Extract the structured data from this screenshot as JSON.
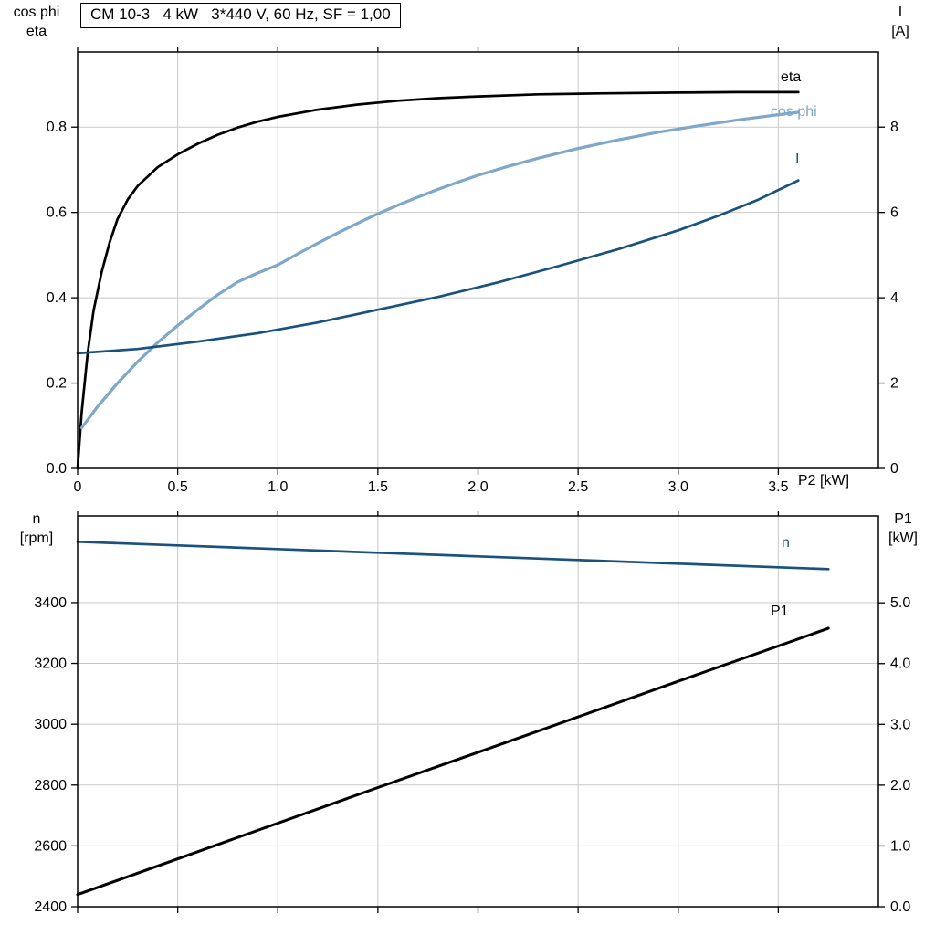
{
  "colors": {
    "grid": "#c9c9c9",
    "axis": "#000000",
    "background": "#ffffff",
    "black_series": "#000000",
    "light_blue_series": "#7ea7c9",
    "dark_blue_series": "#1a527e"
  },
  "chart_data": [
    {
      "type": "line",
      "title": "CM 10-3   4 kW   3*440 V, 60 Hz, SF = 1,00",
      "x_axis": {
        "label": "P2 [kW]",
        "range": [
          0,
          4.0
        ],
        "tick_values": [
          0,
          0.5,
          1,
          1.5,
          2,
          2.5,
          3,
          3.5
        ],
        "tick_labels": [
          "0",
          "0.5",
          "1.0",
          "1.5",
          "2.0",
          "2.5",
          "3.0",
          "3.5"
        ]
      },
      "left_axis": {
        "title_lines": [
          "cos phi",
          "eta"
        ],
        "range": [
          0,
          0.976
        ],
        "tick_values": [
          0,
          0.2,
          0.4,
          0.6,
          0.8
        ],
        "tick_labels": [
          "0.0",
          "0.2",
          "0.4",
          "0.6",
          "0.8"
        ]
      },
      "right_axis": {
        "title_lines": [
          "I",
          "[A]"
        ],
        "range": [
          0,
          9.76
        ],
        "tick_values": [
          0,
          2,
          4,
          6,
          8
        ],
        "tick_labels": [
          "0",
          "2",
          "4",
          "6",
          "8"
        ]
      },
      "series": [
        {
          "name": "eta",
          "axis": "left",
          "color": "#000000",
          "width": 2.7,
          "points": [
            [
              0,
              0
            ],
            [
              0.02,
              0.13
            ],
            [
              0.05,
              0.27
            ],
            [
              0.08,
              0.37
            ],
            [
              0.12,
              0.46
            ],
            [
              0.16,
              0.53
            ],
            [
              0.2,
              0.585
            ],
            [
              0.25,
              0.63
            ],
            [
              0.3,
              0.662
            ],
            [
              0.4,
              0.706
            ],
            [
              0.5,
              0.736
            ],
            [
              0.6,
              0.761
            ],
            [
              0.7,
              0.782
            ],
            [
              0.8,
              0.799
            ],
            [
              0.9,
              0.813
            ],
            [
              1,
              0.824
            ],
            [
              1.2,
              0.841
            ],
            [
              1.4,
              0.853
            ],
            [
              1.6,
              0.862
            ],
            [
              1.8,
              0.868
            ],
            [
              2,
              0.872
            ],
            [
              2.3,
              0.877
            ],
            [
              2.6,
              0.879
            ],
            [
              3,
              0.881
            ],
            [
              3.3,
              0.882
            ],
            [
              3.6,
              0.882
            ]
          ]
        },
        {
          "name": "cos phi",
          "axis": "left",
          "color": "#7ea7c9",
          "width": 3.2,
          "points": [
            [
              0.02,
              0.095
            ],
            [
              0.1,
              0.145
            ],
            [
              0.2,
              0.2
            ],
            [
              0.3,
              0.25
            ],
            [
              0.4,
              0.295
            ],
            [
              0.5,
              0.335
            ],
            [
              0.6,
              0.372
            ],
            [
              0.7,
              0.407
            ],
            [
              0.8,
              0.437
            ],
            [
              0.9,
              0.458
            ],
            [
              1,
              0.477
            ],
            [
              1.1,
              0.503
            ],
            [
              1.2,
              0.528
            ],
            [
              1.3,
              0.552
            ],
            [
              1.4,
              0.575
            ],
            [
              1.5,
              0.597
            ],
            [
              1.6,
              0.617
            ],
            [
              1.7,
              0.636
            ],
            [
              1.8,
              0.654
            ],
            [
              1.9,
              0.671
            ],
            [
              2,
              0.687
            ],
            [
              2.15,
              0.708
            ],
            [
              2.3,
              0.727
            ],
            [
              2.5,
              0.75
            ],
            [
              2.7,
              0.77
            ],
            [
              2.9,
              0.788
            ],
            [
              3.1,
              0.803
            ],
            [
              3.3,
              0.817
            ],
            [
              3.45,
              0.826
            ],
            [
              3.6,
              0.835
            ]
          ]
        },
        {
          "name": "I",
          "axis": "right",
          "color": "#1a527e",
          "width": 2.7,
          "points": [
            [
              0,
              2.7
            ],
            [
              0.3,
              2.8
            ],
            [
              0.6,
              2.97
            ],
            [
              0.9,
              3.17
            ],
            [
              1.2,
              3.42
            ],
            [
              1.5,
              3.72
            ],
            [
              1.8,
              4.02
            ],
            [
              2.1,
              4.36
            ],
            [
              2.4,
              4.74
            ],
            [
              2.7,
              5.14
            ],
            [
              3,
              5.58
            ],
            [
              3.2,
              5.92
            ],
            [
              3.4,
              6.3
            ],
            [
              3.6,
              6.75
            ]
          ]
        }
      ]
    },
    {
      "type": "line",
      "title": "",
      "x_axis": {
        "label": "",
        "range": [
          0,
          4.0
        ],
        "tick_values": [
          0,
          0.5,
          1,
          1.5,
          2,
          2.5,
          3,
          3.5
        ],
        "tick_labels": []
      },
      "left_axis": {
        "title_lines": [
          "n",
          "[rpm]"
        ],
        "range": [
          2400,
          3685
        ],
        "tick_values": [
          2400,
          2600,
          2800,
          3000,
          3200,
          3400
        ],
        "tick_labels": [
          "2400",
          "2600",
          "2800",
          "3000",
          "3200",
          "3400"
        ]
      },
      "right_axis": {
        "title_lines": [
          "P1",
          "[kW]"
        ],
        "range": [
          0,
          6.43
        ],
        "tick_values": [
          0,
          1,
          2,
          3,
          4,
          5
        ],
        "tick_labels": [
          "0.0",
          "1.0",
          "2.0",
          "3.0",
          "4.0",
          "5.0"
        ]
      },
      "series": [
        {
          "name": "n",
          "axis": "left",
          "color": "#1a527e",
          "width": 2.7,
          "points": [
            [
              0,
              3600
            ],
            [
              0.5,
              3588
            ],
            [
              1,
              3576
            ],
            [
              1.5,
              3564
            ],
            [
              2,
              3552
            ],
            [
              2.5,
              3540
            ],
            [
              3,
              3528
            ],
            [
              3.5,
              3516
            ],
            [
              3.75,
              3510
            ]
          ]
        },
        {
          "name": "P1",
          "axis": "right",
          "color": "#000000",
          "width": 3.0,
          "points": [
            [
              0,
              0.2
            ],
            [
              0.75,
              1.08
            ],
            [
              1.5,
              1.96
            ],
            [
              2.25,
              2.83
            ],
            [
              3,
              3.71
            ],
            [
              3.75,
              4.58
            ]
          ]
        }
      ]
    }
  ]
}
